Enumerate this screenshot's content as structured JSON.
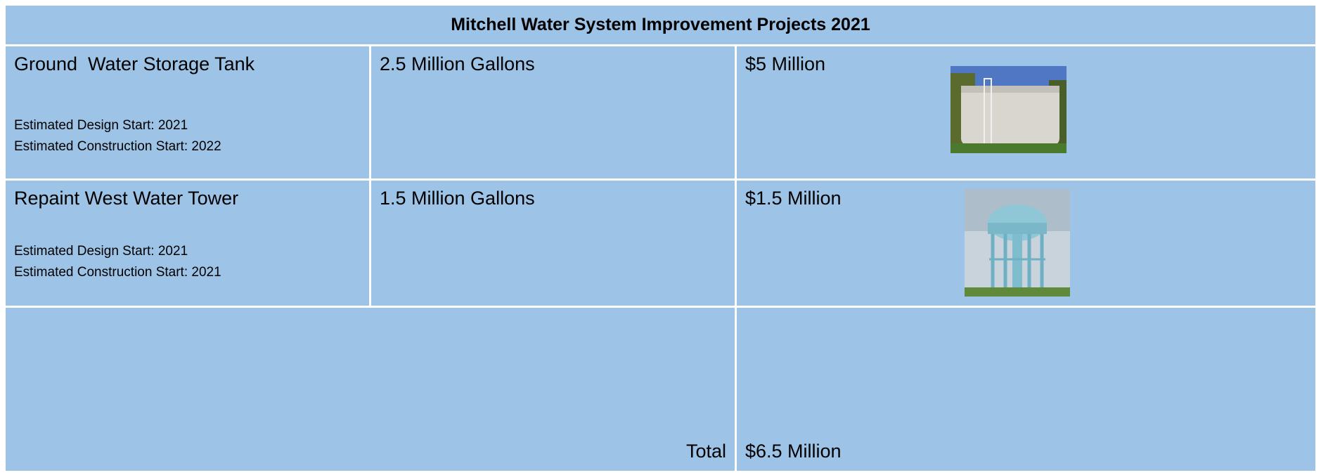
{
  "table": {
    "title": "Mitchell Water System Improvement Projects 2021",
    "rows": [
      {
        "project": "Ground  Water Storage Tank",
        "design_start": "Estimated Design Start: 2021",
        "construction_start": "Estimated Construction Start: 2022",
        "capacity": "2.5 Million Gallons",
        "cost": "$5 Million"
      },
      {
        "project": "Repaint West Water Tower",
        "design_start": "Estimated Design Start: 2021",
        "construction_start": "Estimated Construction Start: 2021",
        "capacity": "1.5 Million Gallons",
        "cost": "$1.5 Million"
      }
    ],
    "total_label": "Total",
    "total": "$6.5 Million"
  }
}
